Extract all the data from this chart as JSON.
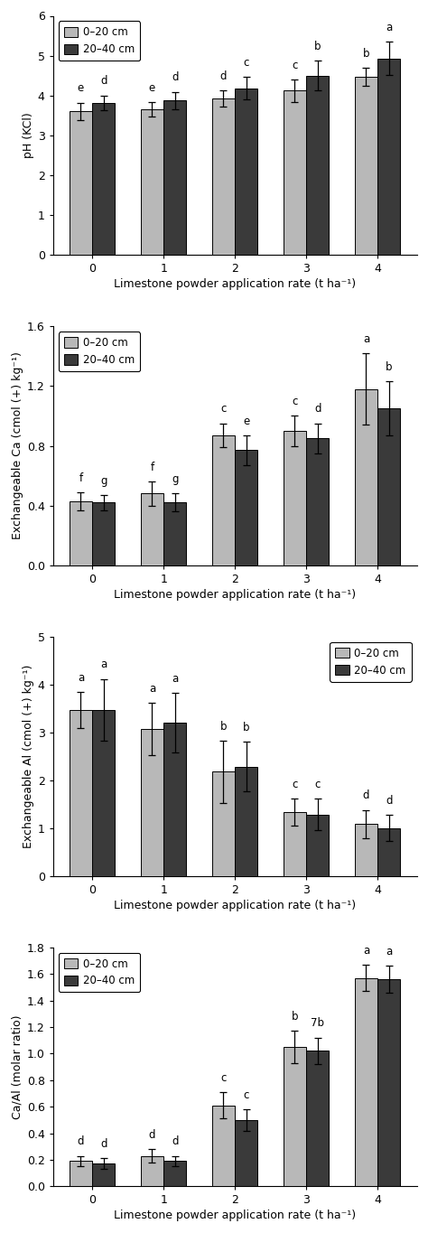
{
  "categories": [
    0,
    1,
    2,
    3,
    4
  ],
  "xlabel": "Limestone powder application rate (t ha⁻¹)",
  "color_light": "#b8b8b8",
  "color_dark": "#3a3a3a",
  "legend_labels": [
    "0–20 cm",
    "20–40 cm"
  ],
  "panel1": {
    "ylabel": "pH (KCl)",
    "ylim": [
      0,
      6
    ],
    "yticks": [
      0,
      1,
      2,
      3,
      4,
      5,
      6
    ],
    "values_light": [
      3.6,
      3.65,
      3.92,
      4.12,
      4.47
    ],
    "errors_light": [
      0.22,
      0.18,
      0.2,
      0.28,
      0.22
    ],
    "values_dark": [
      3.82,
      3.87,
      4.18,
      4.5,
      4.93
    ],
    "errors_dark": [
      0.18,
      0.22,
      0.28,
      0.38,
      0.42
    ],
    "letters_light": [
      "e",
      "e",
      "d",
      "c",
      "b"
    ],
    "letters_dark": [
      "d",
      "d",
      "c",
      "b",
      "a"
    ],
    "legend_loc": "upper left"
  },
  "panel2": {
    "ylabel": "Exchangeable Ca (cmol (+) kg⁻¹)",
    "ylim": [
      0.0,
      1.6
    ],
    "yticks": [
      0.0,
      0.4,
      0.8,
      1.2,
      1.6
    ],
    "values_light": [
      0.43,
      0.48,
      0.87,
      0.9,
      1.18
    ],
    "errors_light": [
      0.06,
      0.08,
      0.08,
      0.1,
      0.24
    ],
    "values_dark": [
      0.42,
      0.42,
      0.77,
      0.85,
      1.05
    ],
    "errors_dark": [
      0.05,
      0.06,
      0.1,
      0.1,
      0.18
    ],
    "letters_light": [
      "f",
      "f",
      "c",
      "c",
      "a"
    ],
    "letters_dark": [
      "g",
      "g",
      "e",
      "d",
      "b"
    ],
    "legend_loc": "upper left"
  },
  "panel3": {
    "ylabel": "Exchangeable Al (cmol (+) kg⁻¹)",
    "ylim": [
      0,
      5
    ],
    "yticks": [
      0,
      1,
      2,
      3,
      4,
      5
    ],
    "values_light": [
      3.47,
      3.07,
      2.18,
      1.33,
      1.08
    ],
    "errors_light": [
      0.38,
      0.55,
      0.65,
      0.28,
      0.3
    ],
    "values_dark": [
      3.47,
      3.2,
      2.28,
      1.28,
      1.0
    ],
    "errors_dark": [
      0.65,
      0.62,
      0.52,
      0.33,
      0.28
    ],
    "letters_light": [
      "a",
      "a",
      "b",
      "c",
      "d"
    ],
    "letters_dark": [
      "a",
      "a",
      "b",
      "c",
      "d"
    ],
    "legend_loc": "upper right"
  },
  "panel4": {
    "ylabel": "Ca/Al (molar ratio)",
    "ylim": [
      0.0,
      1.8
    ],
    "yticks": [
      0.0,
      0.2,
      0.4,
      0.6,
      0.8,
      1.0,
      1.2,
      1.4,
      1.6,
      1.8
    ],
    "values_light": [
      0.19,
      0.23,
      0.61,
      1.05,
      1.57
    ],
    "errors_light": [
      0.04,
      0.05,
      0.1,
      0.12,
      0.1
    ],
    "values_dark": [
      0.17,
      0.19,
      0.5,
      1.02,
      1.56
    ],
    "errors_dark": [
      0.04,
      0.04,
      0.08,
      0.1,
      0.1
    ],
    "letters_light": [
      "d",
      "d",
      "c",
      "b",
      "a"
    ],
    "letters_dark": [
      "d",
      "d",
      "c",
      "7b",
      "a"
    ],
    "legend_loc": "upper left"
  }
}
